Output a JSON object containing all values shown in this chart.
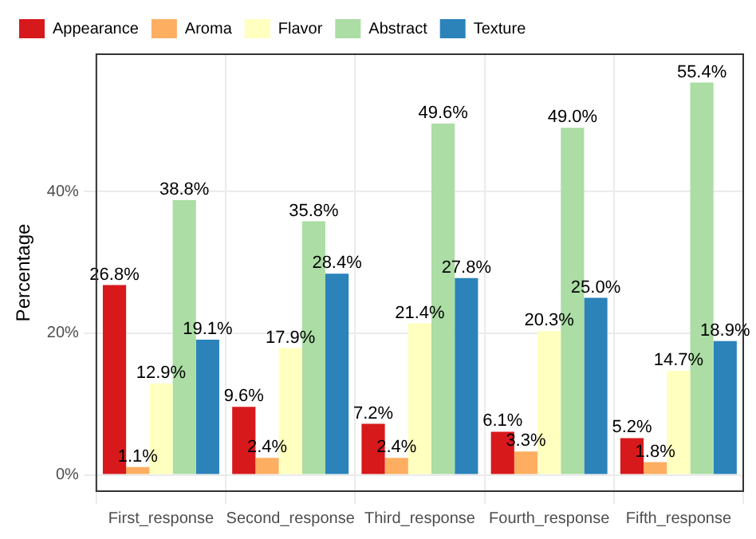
{
  "chart_data": {
    "type": "bar",
    "ylabel": "Percentage",
    "categories": [
      "First_response",
      "Second_response",
      "Third_response",
      "Fourth_response",
      "Fifth_response"
    ],
    "series": [
      {
        "name": "Appearance",
        "color": "#d7191c",
        "values": [
          26.8,
          9.6,
          7.2,
          6.1,
          5.2
        ],
        "value_labels": [
          "26.8%",
          "9.6%",
          "7.2%",
          "6.1%",
          "5.2%"
        ]
      },
      {
        "name": "Aroma",
        "color": "#fdae61",
        "values": [
          1.1,
          2.4,
          2.4,
          3.3,
          1.8
        ],
        "value_labels": [
          "1.1%",
          "2.4%",
          "2.4%",
          "3.3%",
          "1.8%"
        ]
      },
      {
        "name": "Flavor",
        "color": "#ffffbf",
        "values": [
          12.9,
          17.9,
          21.4,
          20.3,
          14.7
        ],
        "value_labels": [
          "12.9%",
          "17.9%",
          "21.4%",
          "20.3%",
          "14.7%"
        ]
      },
      {
        "name": "Abstract",
        "color": "#abdda4",
        "values": [
          38.8,
          35.8,
          49.6,
          49.0,
          55.4
        ],
        "value_labels": [
          "38.8%",
          "35.8%",
          "49.6%",
          "49.0%",
          "55.4%"
        ]
      },
      {
        "name": "Texture",
        "color": "#2b83ba",
        "values": [
          19.1,
          28.4,
          27.8,
          25.0,
          18.9
        ],
        "value_labels": [
          "19.1%",
          "28.4%",
          "27.8%",
          "25.0%",
          "18.9%"
        ]
      }
    ],
    "ylim": [
      -2.3,
      59.4
    ],
    "yticks": [
      {
        "value": 0,
        "label": "0%"
      },
      {
        "value": 20,
        "label": "20%"
      },
      {
        "value": 40,
        "label": "40%"
      }
    ],
    "grid": true,
    "legend": "top left"
  }
}
